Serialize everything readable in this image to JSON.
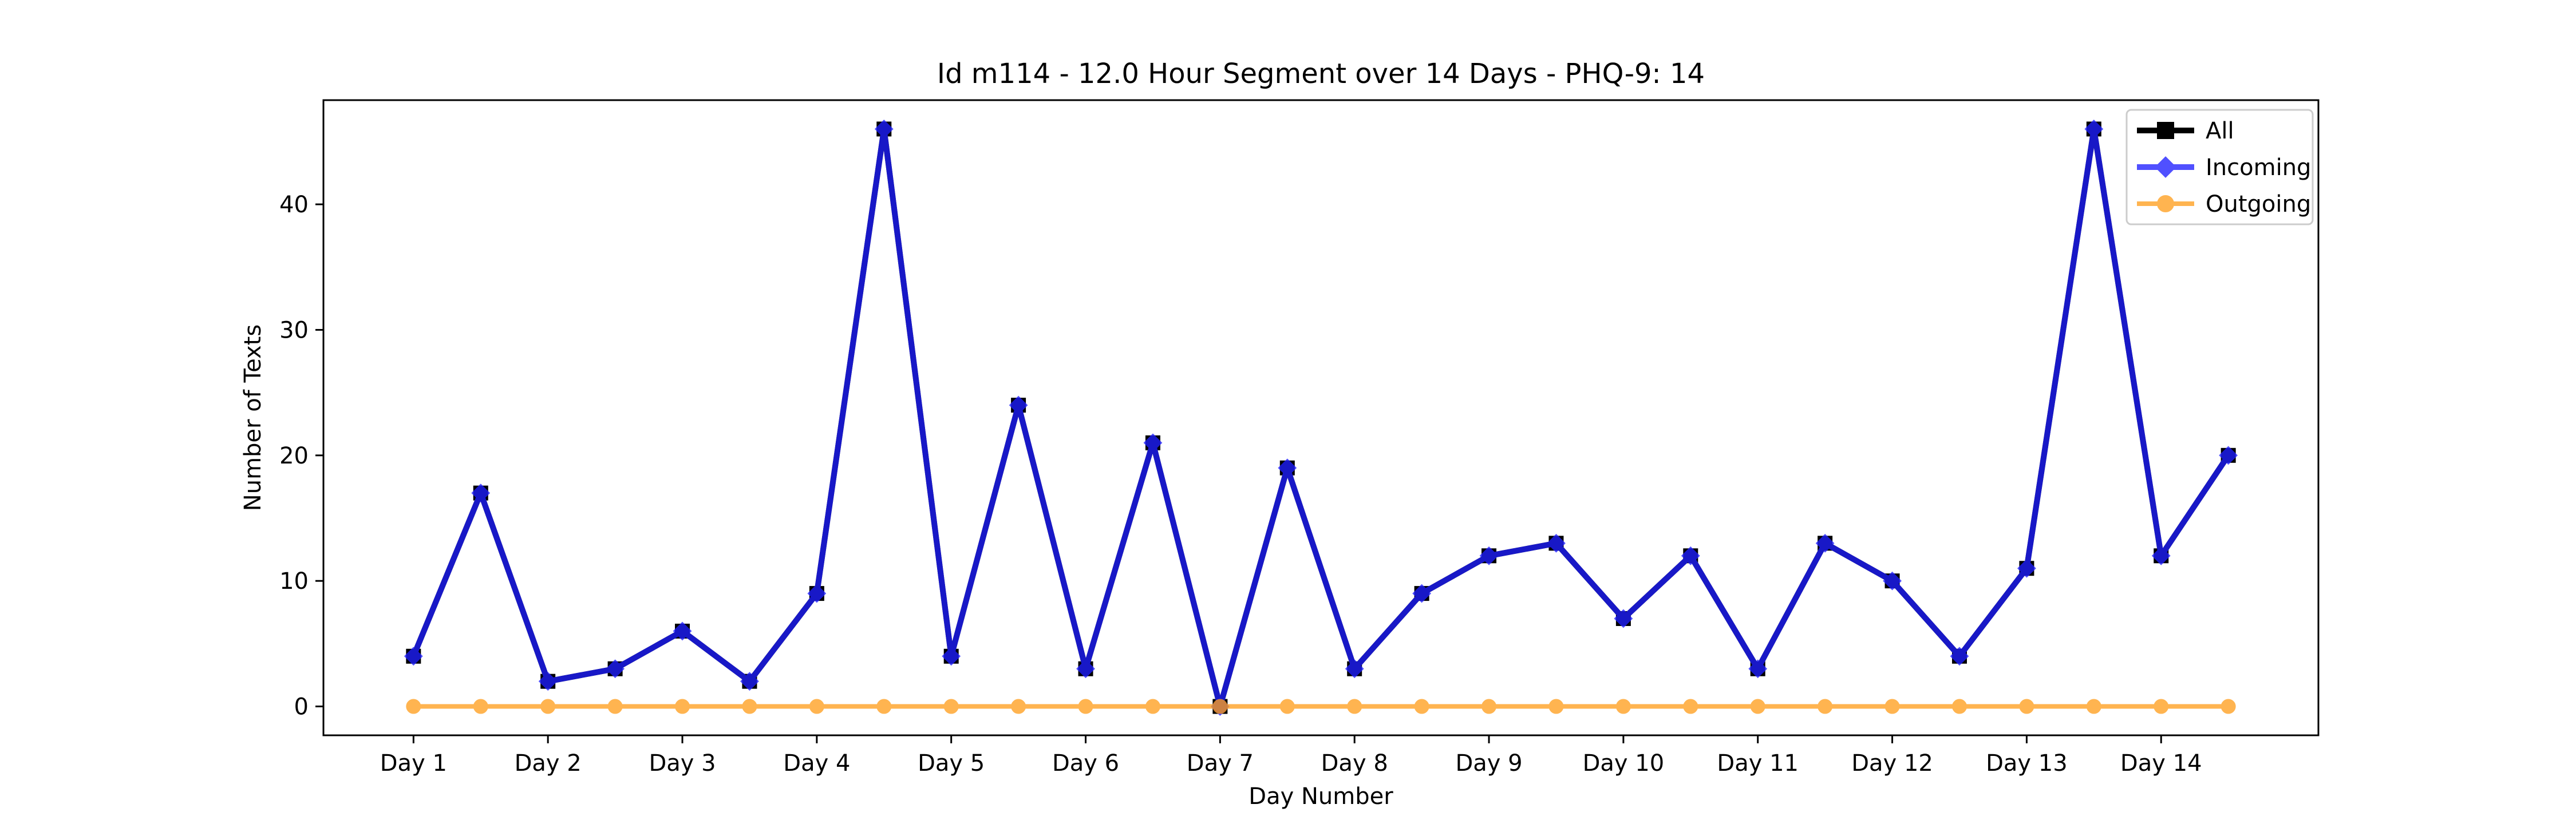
{
  "chart_data": {
    "type": "line",
    "title": "Id m114 - 12.0 Hour Segment over 14 Days - PHQ-9: 14",
    "xlabel": "Day Number",
    "ylabel": "Number of Texts",
    "categories": [
      "Day 1",
      "Day 2",
      "Day 3",
      "Day 4",
      "Day 5",
      "Day 6",
      "Day 7",
      "Day 8",
      "Day 9",
      "Day 10",
      "Day 11",
      "Day 12",
      "Day 13",
      "Day 14"
    ],
    "x": [
      1,
      1.5,
      2,
      2.5,
      3,
      3.5,
      4,
      4.5,
      5,
      5.5,
      6,
      6.5,
      7,
      7.5,
      8,
      8.5,
      9,
      9.5,
      10,
      10.5,
      11,
      11.5,
      12,
      12.5,
      13,
      13.5,
      14,
      14.5
    ],
    "xlim": [
      0.33,
      15.17
    ],
    "ylim": [
      -2.3,
      48.3
    ],
    "yticks": [
      0,
      10,
      20,
      30,
      40
    ],
    "grid": false,
    "legend_position": "top-right",
    "series": [
      {
        "name": "All",
        "color": "#000000",
        "marker": "square",
        "values": [
          4,
          17,
          2,
          3,
          6,
          2,
          9,
          46,
          4,
          24,
          3,
          21,
          0,
          19,
          3,
          9,
          12,
          13,
          7,
          12,
          3,
          13,
          10,
          4,
          11,
          46,
          12,
          20
        ]
      },
      {
        "name": "Incoming",
        "color": "#1f1fff",
        "marker": "diamond",
        "values": [
          4,
          17,
          2,
          3,
          6,
          2,
          9,
          46,
          4,
          24,
          3,
          21,
          0,
          19,
          3,
          9,
          12,
          13,
          7,
          12,
          3,
          13,
          10,
          4,
          11,
          46,
          12,
          20
        ]
      },
      {
        "name": "Outgoing",
        "color": "#ff9f1f",
        "marker": "circle",
        "values": [
          0,
          0,
          0,
          0,
          0,
          0,
          0,
          0,
          0,
          0,
          0,
          0,
          0,
          0,
          0,
          0,
          0,
          0,
          0,
          0,
          0,
          0,
          0,
          0,
          0,
          0,
          0,
          0
        ]
      }
    ]
  }
}
